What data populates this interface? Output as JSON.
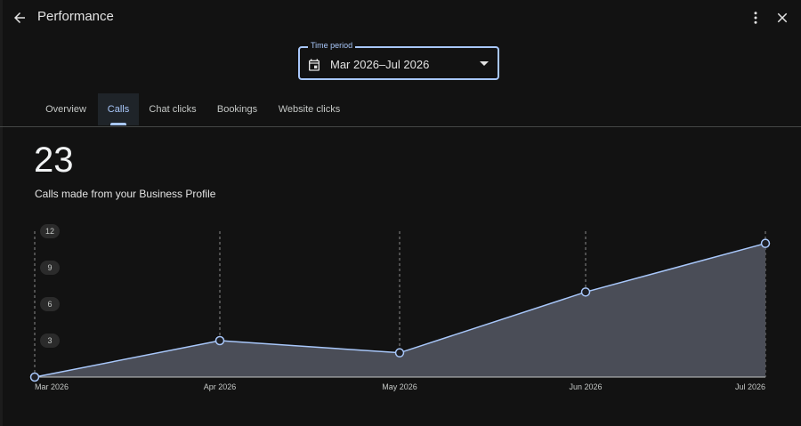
{
  "header": {
    "title": "Performance",
    "back_icon": "arrow-back-icon",
    "more_icon": "more-vert-icon",
    "close_icon": "close-icon"
  },
  "time_period": {
    "label": "Time period",
    "value": "Mar 2026–Jul 2026"
  },
  "tabs": [
    {
      "label": "Overview",
      "active": false
    },
    {
      "label": "Calls",
      "active": true
    },
    {
      "label": "Chat clicks",
      "active": false
    },
    {
      "label": "Bookings",
      "active": false
    },
    {
      "label": "Website clicks",
      "active": false
    }
  ],
  "metric": {
    "value": "23",
    "description": "Calls made from your Business Profile"
  },
  "colors": {
    "accent": "#a8c7fa",
    "area_fill": "#4a4d57",
    "background": "#121212"
  },
  "chart_data": {
    "type": "area",
    "categories": [
      "Mar 2026",
      "Apr 2026",
      "May 2026",
      "Jun 2026",
      "Jul 2026"
    ],
    "values": [
      0,
      3,
      2,
      7,
      11
    ],
    "yticks": [
      "3",
      "6",
      "9",
      "12"
    ],
    "ylim": [
      0,
      12
    ],
    "grid": "vertical-dashed"
  }
}
